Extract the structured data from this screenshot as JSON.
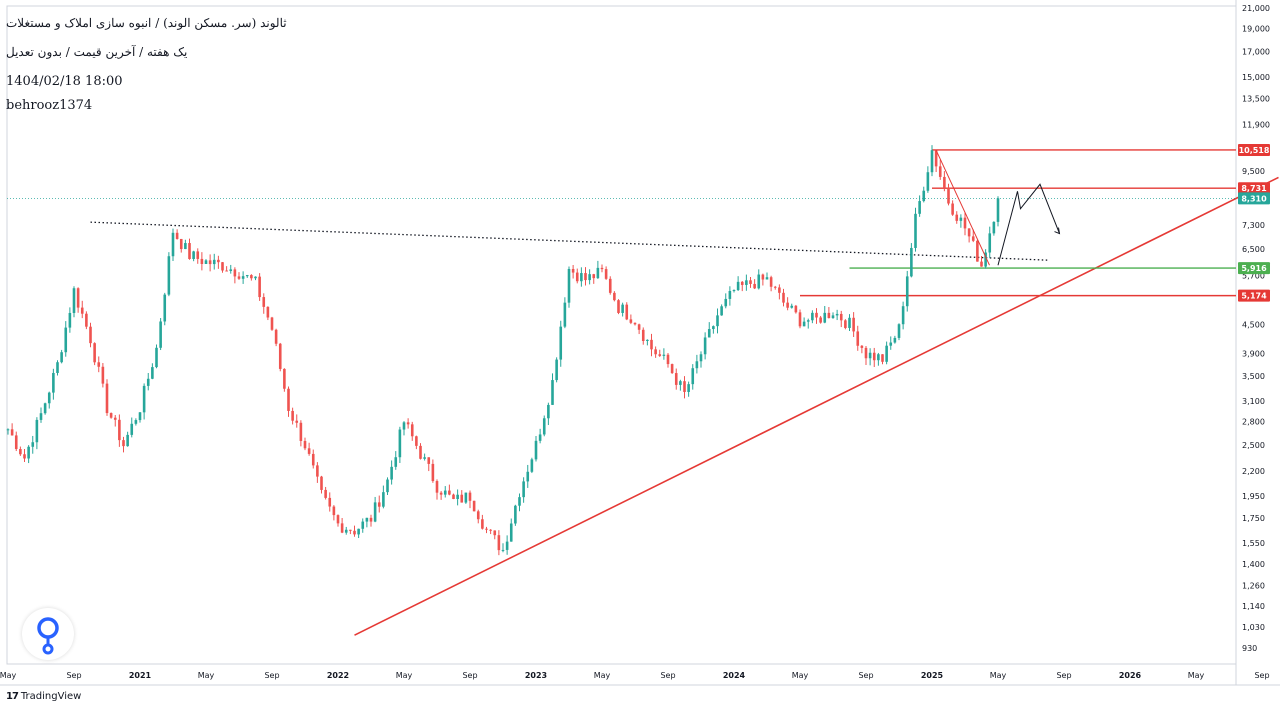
{
  "header": {
    "title": "ثالوند (سر. مسکن الوند) / انبوه سازی املاک و مستغلات",
    "subtitle": "یک هفته / آخرین قیمت / بدون تعدیل",
    "datetime": "1404/02/18 18:00",
    "author": "behrooz1374"
  },
  "brand": {
    "name": "TradingView",
    "logo_text": "17"
  },
  "colors": {
    "up": "#26a69a",
    "down": "#ef5350",
    "line": "#e53935",
    "support": "#4caf50",
    "price": "#26a69a"
  },
  "chart_data": {
    "type": "candlestick",
    "scale": "log",
    "y_ticks": [
      930,
      1030,
      1140,
      1260,
      1400,
      1550,
      1750,
      1950,
      2200,
      2500,
      2800,
      3100,
      3500,
      3900,
      4500,
      5700,
      6500,
      7300,
      9500,
      11900,
      13500,
      15000,
      17000,
      19000,
      21000
    ],
    "x_ticks": [
      "May",
      "Sep",
      "2021",
      "May",
      "Sep",
      "2022",
      "May",
      "Sep",
      "2023",
      "May",
      "Sep",
      "2024",
      "May",
      "Sep",
      "2025",
      "May",
      "Sep",
      "2026",
      "May",
      "Sep"
    ],
    "x_ticks_bold": [
      false,
      false,
      true,
      false,
      false,
      true,
      false,
      false,
      true,
      false,
      false,
      true,
      false,
      false,
      true,
      false,
      false,
      true,
      false,
      false
    ],
    "price_path": [
      {
        "date": "2020-05",
        "price": 2700
      },
      {
        "date": "2020-06",
        "price": 2350
      },
      {
        "date": "2020-07",
        "price": 2900
      },
      {
        "date": "2020-08",
        "price": 3700
      },
      {
        "date": "2020-09",
        "price": 5300
      },
      {
        "date": "2020-10",
        "price": 4200
      },
      {
        "date": "2020-11",
        "price": 3000
      },
      {
        "date": "2020-12",
        "price": 2500
      },
      {
        "date": "2021-01",
        "price": 3000
      },
      {
        "date": "2021-02",
        "price": 4000
      },
      {
        "date": "2021-03",
        "price": 7100
      },
      {
        "date": "2021-04",
        "price": 6300
      },
      {
        "date": "2021-05",
        "price": 6100
      },
      {
        "date": "2021-06",
        "price": 6000
      },
      {
        "date": "2021-07",
        "price": 5800
      },
      {
        "date": "2021-08",
        "price": 5500
      },
      {
        "date": "2021-09",
        "price": 4400
      },
      {
        "date": "2021-10",
        "price": 3000
      },
      {
        "date": "2021-11",
        "price": 2500
      },
      {
        "date": "2021-12",
        "price": 1950
      },
      {
        "date": "2022-01",
        "price": 1700
      },
      {
        "date": "2022-02",
        "price": 1650
      },
      {
        "date": "2022-03",
        "price": 1750
      },
      {
        "date": "2022-04",
        "price": 2100
      },
      {
        "date": "2022-05",
        "price": 2800
      },
      {
        "date": "2022-06",
        "price": 2400
      },
      {
        "date": "2022-07",
        "price": 2050
      },
      {
        "date": "2022-08",
        "price": 1900
      },
      {
        "date": "2022-09",
        "price": 1950
      },
      {
        "date": "2022-10",
        "price": 1650
      },
      {
        "date": "2022-11",
        "price": 1500
      },
      {
        "date": "2022-12",
        "price": 2000
      },
      {
        "date": "2023-01",
        "price": 2500
      },
      {
        "date": "2023-02",
        "price": 3400
      },
      {
        "date": "2023-03",
        "price": 5900
      },
      {
        "date": "2023-04",
        "price": 5600
      },
      {
        "date": "2023-05",
        "price": 5800
      },
      {
        "date": "2023-06",
        "price": 4900
      },
      {
        "date": "2023-07",
        "price": 4600
      },
      {
        "date": "2023-08",
        "price": 4000
      },
      {
        "date": "2023-09",
        "price": 3700
      },
      {
        "date": "2023-10",
        "price": 3200
      },
      {
        "date": "2023-11",
        "price": 3900
      },
      {
        "date": "2023-12",
        "price": 4700
      },
      {
        "date": "2024-01",
        "price": 5300
      },
      {
        "date": "2024-02",
        "price": 5500
      },
      {
        "date": "2024-03",
        "price": 5600
      },
      {
        "date": "2024-04",
        "price": 5000
      },
      {
        "date": "2024-05",
        "price": 4600
      },
      {
        "date": "2024-06",
        "price": 4600
      },
      {
        "date": "2024-07",
        "price": 4800
      },
      {
        "date": "2024-08",
        "price": 4500
      },
      {
        "date": "2024-09",
        "price": 3900
      },
      {
        "date": "2024-10",
        "price": 3800
      },
      {
        "date": "2024-11",
        "price": 4400
      },
      {
        "date": "2024-12",
        "price": 7500
      },
      {
        "date": "2025-01",
        "price": 10518
      },
      {
        "date": "2025-02",
        "price": 8200
      },
      {
        "date": "2025-03",
        "price": 7200
      },
      {
        "date": "2025-04",
        "price": 6000
      },
      {
        "date": "2025-05",
        "price": 8310
      }
    ],
    "horizontal_levels": [
      {
        "value": 10518,
        "label": "10,518",
        "color": "#e53935",
        "from": "2025-01"
      },
      {
        "value": 8731,
        "label": "8,731",
        "color": "#e53935",
        "from": "2025-01"
      },
      {
        "value": 5916,
        "label": "5,916",
        "color": "#4caf50",
        "from": "2024-08"
      },
      {
        "value": 5174,
        "label": "5,174",
        "color": "#e53935",
        "from": "2024-05"
      }
    ],
    "current_price": {
      "value": 8310,
      "label": "8,310"
    },
    "trendlines": [
      {
        "style": "solid",
        "color": "#e53935",
        "from": {
          "date": "2022-02",
          "price": 990
        },
        "to": {
          "date": "2026-10",
          "price": 9200
        }
      },
      {
        "style": "dotted",
        "color": "#131722",
        "from": {
          "date": "2020-10",
          "price": 7400
        },
        "to": {
          "date": "2025-08",
          "price": 6150
        }
      }
    ],
    "projection_path": [
      {
        "date": "2025-05",
        "price": 6000
      },
      {
        "date": "2025-06",
        "price": 8600
      },
      {
        "date": "2025-06",
        "price": 7900
      },
      {
        "date": "2025-07",
        "price": 8900
      },
      {
        "date": "2025-08",
        "price": 7000
      }
    ]
  }
}
